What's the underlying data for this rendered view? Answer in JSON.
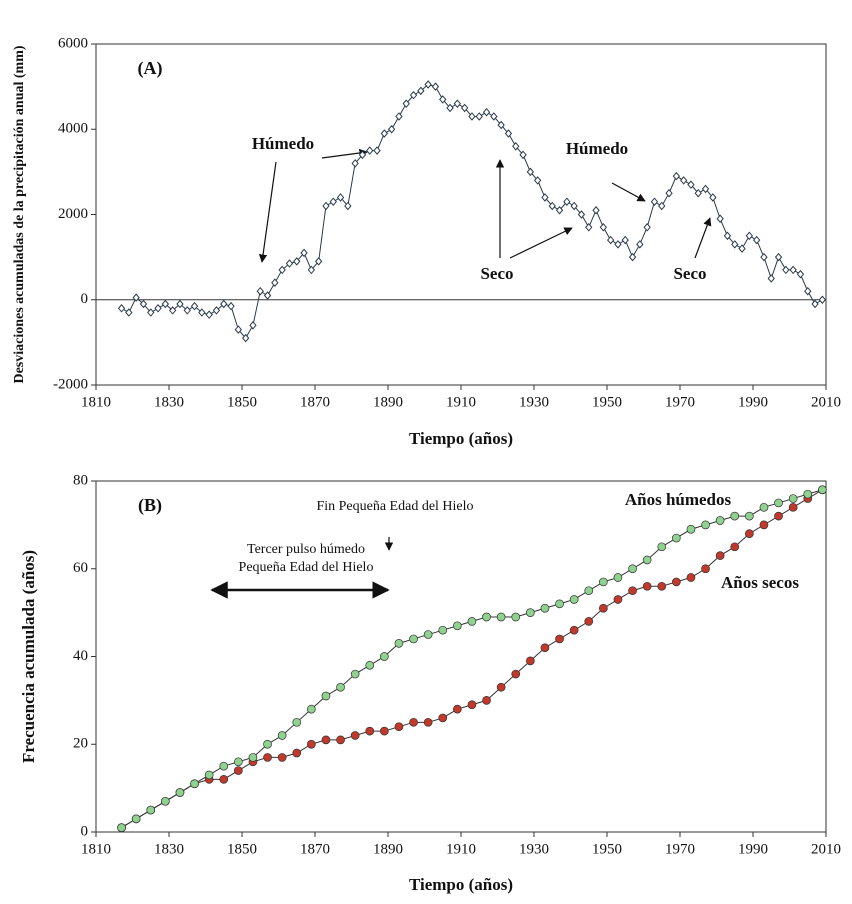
{
  "chart_data": [
    {
      "type": "line",
      "panel_label": "(A)",
      "xlabel": "Tiempo (años)",
      "ylabel": "Desviaciones acumuladas de la precipitación anual (mm)",
      "xlim": [
        1810,
        2010
      ],
      "xticks": [
        1810,
        1830,
        1850,
        1870,
        1890,
        1910,
        1930,
        1950,
        1970,
        1990,
        2010
      ],
      "ylim": [
        -2000,
        6000
      ],
      "yticks": [
        -2000,
        0,
        2000,
        4000,
        6000
      ],
      "x": [
        1817,
        1819,
        1821,
        1823,
        1825,
        1827,
        1829,
        1831,
        1833,
        1835,
        1837,
        1839,
        1841,
        1843,
        1845,
        1847,
        1849,
        1851,
        1853,
        1855,
        1857,
        1859,
        1861,
        1863,
        1865,
        1867,
        1869,
        1871,
        1873,
        1875,
        1877,
        1879,
        1881,
        1883,
        1885,
        1887,
        1889,
        1891,
        1893,
        1895,
        1897,
        1899,
        1901,
        1903,
        1905,
        1907,
        1909,
        1911,
        1913,
        1915,
        1917,
        1919,
        1921,
        1923,
        1925,
        1927,
        1929,
        1931,
        1933,
        1935,
        1937,
        1939,
        1941,
        1943,
        1945,
        1947,
        1949,
        1951,
        1953,
        1955,
        1957,
        1959,
        1961,
        1963,
        1965,
        1967,
        1969,
        1971,
        1973,
        1975,
        1977,
        1979,
        1981,
        1983,
        1985,
        1987,
        1989,
        1991,
        1993,
        1995,
        1997,
        1999,
        2001,
        2003,
        2005,
        2007,
        2009
      ],
      "series": [
        {
          "color": "#2a3a4a",
          "values": [
            -200,
            -300,
            50,
            -100,
            -300,
            -200,
            -100,
            -250,
            -100,
            -250,
            -150,
            -300,
            -350,
            -250,
            -100,
            -150,
            -700,
            -900,
            -600,
            200,
            100,
            400,
            700,
            850,
            900,
            1100,
            700,
            900,
            2200,
            2300,
            2400,
            2200,
            3200,
            3400,
            3500,
            3500,
            3900,
            4000,
            4300,
            4600,
            4800,
            4900,
            5050,
            5000,
            4700,
            4500,
            4600,
            4500,
            4300,
            4300,
            4400,
            4300,
            4100,
            3900,
            3600,
            3400,
            3000,
            2800,
            2400,
            2200,
            2100,
            2300,
            2200,
            2000,
            1700,
            2100,
            1700,
            1400,
            1300,
            1400,
            1000,
            1300,
            1700,
            2300,
            2200,
            2500,
            2900,
            2800,
            2700,
            2500,
            2600,
            2400,
            1900,
            1500,
            1300,
            1200,
            1500,
            1400,
            1000,
            500,
            1000,
            700,
            700,
            600,
            200,
            -100,
            0
          ]
        }
      ],
      "annotations": [
        {
          "text": "Húmedo",
          "color": "#3333cc"
        },
        {
          "text": "Húmedo",
          "color": "#3333cc"
        },
        {
          "text": "Seco",
          "color": "#c0392b"
        },
        {
          "text": "Seco",
          "color": "#c0392b"
        }
      ]
    },
    {
      "type": "line",
      "panel_label": "(B)",
      "xlabel": "Tiempo (años)",
      "ylabel": "Frecuencia acumulada (años)",
      "xlim": [
        1810,
        2010
      ],
      "xticks": [
        1810,
        1830,
        1850,
        1870,
        1890,
        1910,
        1930,
        1950,
        1970,
        1990,
        2010
      ],
      "ylim": [
        0,
        80
      ],
      "yticks": [
        0,
        20,
        40,
        60,
        80
      ],
      "x": [
        1817,
        1821,
        1825,
        1829,
        1833,
        1837,
        1841,
        1845,
        1849,
        1853,
        1857,
        1861,
        1865,
        1869,
        1873,
        1877,
        1881,
        1885,
        1889,
        1893,
        1897,
        1901,
        1905,
        1909,
        1913,
        1917,
        1921,
        1925,
        1929,
        1933,
        1937,
        1941,
        1945,
        1949,
        1953,
        1957,
        1961,
        1965,
        1969,
        1973,
        1977,
        1981,
        1985,
        1989,
        1993,
        1997,
        2001,
        2005,
        2009
      ],
      "series": [
        {
          "name": "Años secos",
          "color": "#c0392b",
          "values": [
            1,
            3,
            5,
            7,
            9,
            11,
            12,
            12,
            14,
            16,
            17,
            17,
            18,
            20,
            21,
            21,
            22,
            23,
            23,
            24,
            25,
            25,
            26,
            28,
            29,
            30,
            33,
            36,
            39,
            42,
            44,
            46,
            48,
            51,
            53,
            55,
            56,
            56,
            57,
            58,
            60,
            63,
            65,
            68,
            70,
            72,
            74,
            76,
            78
          ]
        },
        {
          "name": "Años húmedos",
          "color": "#3333cc",
          "marker": "#8fd18f",
          "values": [
            1,
            3,
            5,
            7,
            9,
            11,
            13,
            15,
            16,
            17,
            20,
            22,
            25,
            28,
            31,
            33,
            36,
            38,
            40,
            43,
            44,
            45,
            46,
            47,
            48,
            49,
            49,
            49,
            50,
            51,
            52,
            53,
            55,
            57,
            58,
            60,
            62,
            65,
            67,
            69,
            70,
            71,
            72,
            72,
            74,
            75,
            76,
            77,
            78
          ]
        }
      ],
      "annotations": [
        {
          "text": "Fin Pequeña Edad del Hielo",
          "color": "#222"
        },
        {
          "text": "Tercer pulso húmedo",
          "color": "#222"
        },
        {
          "text": "Pequeña Edad del Hielo",
          "color": "#222"
        }
      ]
    }
  ]
}
